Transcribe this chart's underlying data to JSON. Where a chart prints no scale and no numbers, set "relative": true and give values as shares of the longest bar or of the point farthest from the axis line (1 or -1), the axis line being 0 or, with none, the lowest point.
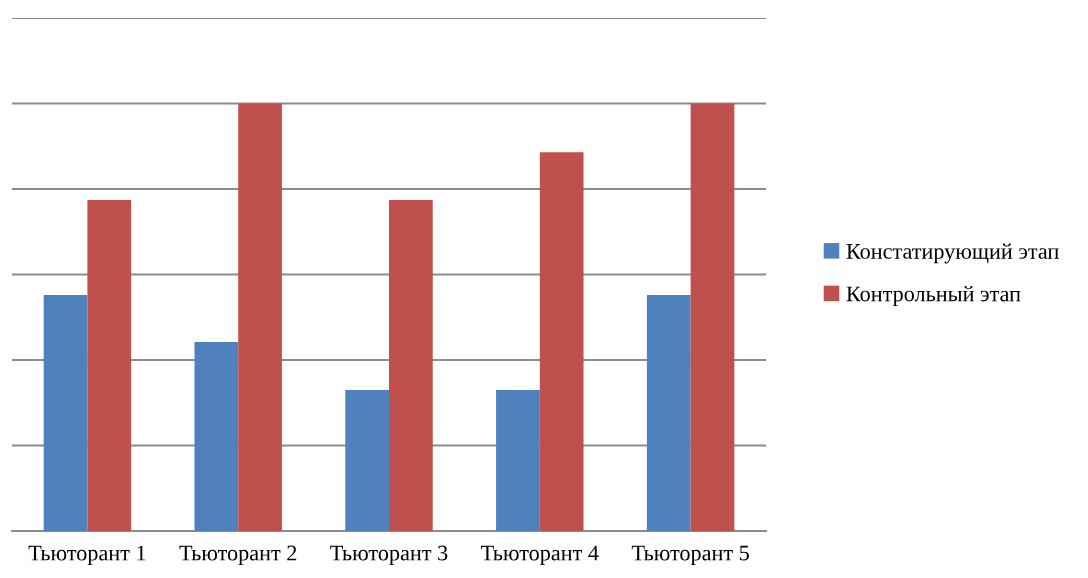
{
  "chart_data": {
    "type": "bar",
    "relative": true,
    "categories": [
      "Тьюторант 1",
      "Тьюторант 2",
      "Тьюторант 3",
      "Тьюторант 4",
      "Тьюторант 5"
    ],
    "series": [
      {
        "name": "Констатирующий этап",
        "color": "#4f81bd",
        "values": [
          0.552,
          0.442,
          0.33,
          0.33,
          0.552
        ]
      },
      {
        "name": "Контрольный этап",
        "color": "#c0504d",
        "values": [
          0.774,
          1,
          0.774,
          0.886,
          1
        ]
      }
    ],
    "grid": "y",
    "legend": "right"
  }
}
